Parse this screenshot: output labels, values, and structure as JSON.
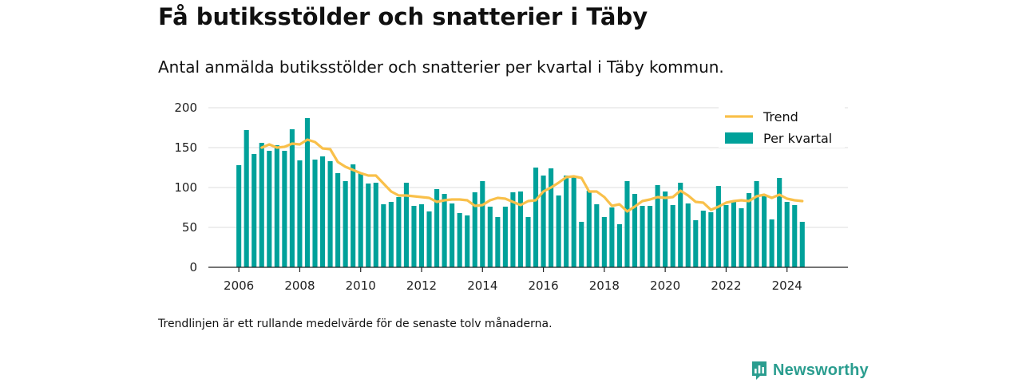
{
  "header": {
    "title": "Få butiksstölder och snatterier i Täby",
    "subtitle": "Antal anmälda butiksstölder och snatterier per kvartal i Täby kommun."
  },
  "footer": {
    "note": "Trendlinjen är ett rullande medelvärde för de senaste tolv månaderna.",
    "brand": "Newsworthy"
  },
  "colors": {
    "bar": "#00a19a",
    "trend": "#f9c04a",
    "grid": "#dddddd",
    "brand": "#2a9d8f"
  },
  "chart_data": {
    "type": "bar",
    "xlim": [
      2005,
      2026
    ],
    "ylim": [
      0,
      200
    ],
    "xticks": [
      "2006",
      "2008",
      "2010",
      "2012",
      "2014",
      "2016",
      "2018",
      "2020",
      "2022",
      "2024"
    ],
    "yticks": [
      "0",
      "50",
      "100",
      "150",
      "200"
    ],
    "grid": true,
    "legend_position": "top-right",
    "series": [
      {
        "name": "Per kvartal",
        "kind": "bar",
        "start": 2006.0,
        "step": 0.25,
        "values": [
          128,
          172,
          142,
          156,
          146,
          153,
          146,
          173,
          134,
          187,
          135,
          139,
          133,
          118,
          108,
          129,
          118,
          105,
          106,
          79,
          82,
          88,
          106,
          77,
          79,
          70,
          98,
          92,
          80,
          68,
          65,
          94,
          108,
          76,
          63,
          76,
          94,
          95,
          63,
          125,
          115,
          124,
          90,
          115,
          114,
          57,
          96,
          79,
          63,
          75,
          54,
          108,
          92,
          77,
          77,
          103,
          95,
          78,
          106,
          80,
          59,
          71,
          69,
          102,
          78,
          83,
          74,
          93,
          108,
          89,
          60,
          112,
          82,
          78,
          57
        ]
      },
      {
        "name": "Trend",
        "kind": "line",
        "x": [
          2006.75,
          2007.0,
          2007.25,
          2007.5,
          2007.75,
          2008.0,
          2008.25,
          2008.5,
          2008.75,
          2009.0,
          2009.25,
          2009.5,
          2009.75,
          2010.0,
          2010.25,
          2010.5,
          2010.75,
          2011.0,
          2011.25,
          2011.5,
          2011.75,
          2012.0,
          2012.25,
          2012.5,
          2012.75,
          2013.0,
          2013.25,
          2013.5,
          2013.75,
          2014.0,
          2014.25,
          2014.5,
          2014.75,
          2015.0,
          2015.25,
          2015.5,
          2015.75,
          2016.0,
          2016.25,
          2016.5,
          2016.75,
          2017.0,
          2017.25,
          2017.5,
          2017.75,
          2018.0,
          2018.25,
          2018.5,
          2018.75,
          2019.0,
          2019.25,
          2019.5,
          2019.75,
          2020.0,
          2020.25,
          2020.5,
          2020.75,
          2021.0,
          2021.25,
          2021.5,
          2021.75,
          2022.0,
          2022.25,
          2022.5,
          2022.75,
          2023.0,
          2023.25,
          2023.5,
          2023.75,
          2024.0,
          2024.25,
          2024.5
        ],
        "values": [
          150,
          154,
          150,
          151,
          155,
          154,
          160,
          157,
          149,
          148,
          132,
          126,
          122,
          118,
          115,
          115,
          105,
          95,
          90,
          90,
          89,
          88,
          87,
          82,
          84,
          85,
          85,
          84,
          77,
          78,
          84,
          87,
          86,
          82,
          78,
          83,
          84,
          95,
          100,
          106,
          113,
          114,
          112,
          95,
          95,
          88,
          77,
          79,
          70,
          76,
          83,
          85,
          88,
          87,
          88,
          96,
          90,
          82,
          81,
          72,
          76,
          81,
          83,
          84,
          83,
          89,
          91,
          87,
          91,
          86,
          84,
          83
        ]
      }
    ]
  }
}
